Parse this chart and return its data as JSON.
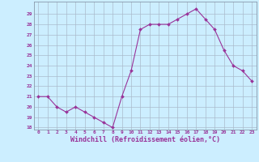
{
  "x": [
    0,
    1,
    2,
    3,
    4,
    5,
    6,
    7,
    8,
    9,
    10,
    11,
    12,
    13,
    14,
    15,
    16,
    17,
    18,
    19,
    20,
    21,
    22,
    23
  ],
  "y": [
    21.0,
    21.0,
    20.0,
    19.5,
    20.0,
    19.5,
    19.0,
    18.5,
    18.0,
    21.0,
    23.5,
    27.5,
    28.0,
    28.0,
    28.0,
    28.5,
    29.0,
    29.5,
    28.5,
    27.5,
    25.5,
    24.0,
    23.5,
    22.5
  ],
  "ylim_min": 17.8,
  "ylim_max": 30.2,
  "yticks": [
    18,
    19,
    20,
    21,
    22,
    23,
    24,
    25,
    26,
    27,
    28,
    29
  ],
  "xticks": [
    0,
    1,
    2,
    3,
    4,
    5,
    6,
    7,
    8,
    9,
    10,
    11,
    12,
    13,
    14,
    15,
    16,
    17,
    18,
    19,
    20,
    21,
    22,
    23
  ],
  "xlabel": "Windchill (Refroidissement éolien,°C)",
  "line_color": "#993399",
  "marker_color": "#993399",
  "bg_color": "#cceeff",
  "grid_color": "#aabbcc",
  "spine_color": "#8899aa",
  "tick_label_color": "#993399",
  "xlabel_color": "#993399",
  "figsize": [
    3.2,
    2.0
  ],
  "dpi": 100
}
